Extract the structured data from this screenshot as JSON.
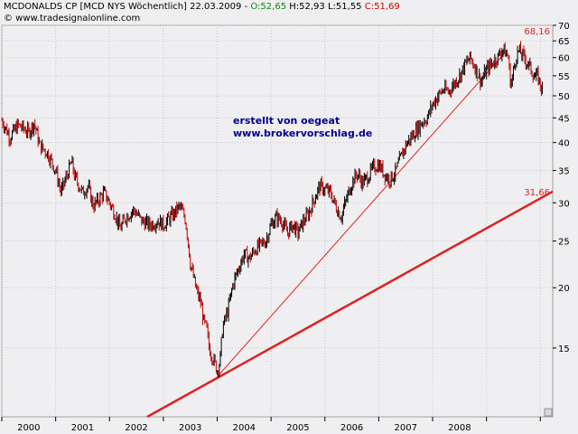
{
  "header": {
    "title": "MCDONALDS CP [MCD NYS  Wöchentlich] 22.03.2009 - ",
    "open": "O:52,65",
    "high": "H:52,93",
    "low": "L:51,55",
    "close": "C:51,69",
    "site": "© www.tradesignalonline.com"
  },
  "watermark": {
    "line1": "erstellt von oegeat",
    "line2": "www.brokervorschlag.de"
  },
  "colors": {
    "up": "#000000",
    "down": "#c00000",
    "trend": "#e02020",
    "background": "#efeff1"
  },
  "chart_data": {
    "type": "line",
    "scale": "log",
    "ylim": [
      10.8,
      70
    ],
    "xlim": [
      1999.0,
      2009.23
    ],
    "yticks": [
      15,
      20,
      25,
      30,
      35,
      40,
      45,
      50,
      55,
      60,
      65,
      70
    ],
    "xticks": [
      "2000",
      "2001",
      "2002",
      "2003",
      "2004",
      "2005",
      "2006",
      "2007",
      "2008"
    ],
    "xtick_values": [
      1999.5,
      2000.5,
      2001.5,
      2002.5,
      2003.5,
      2004.5,
      2005.5,
      2006.5,
      2007.5
    ],
    "series": [
      {
        "values": [
          [
            1999.0,
            44.5
          ],
          [
            1999.15,
            41.0
          ],
          [
            1999.3,
            43.5
          ],
          [
            1999.5,
            42.0
          ],
          [
            1999.6,
            44.0
          ],
          [
            1999.7,
            39.5
          ],
          [
            1999.85,
            38.0
          ],
          [
            2000.0,
            35.0
          ],
          [
            2000.1,
            31.5
          ],
          [
            2000.2,
            34.0
          ],
          [
            2000.3,
            36.5
          ],
          [
            2000.35,
            34.0
          ],
          [
            2000.5,
            31.5
          ],
          [
            2000.6,
            32.5
          ],
          [
            2000.7,
            29.5
          ],
          [
            2000.8,
            30.5
          ],
          [
            2000.9,
            31.5
          ],
          [
            2001.0,
            30.0
          ],
          [
            2001.1,
            28.5
          ],
          [
            2001.2,
            26.5
          ],
          [
            2001.3,
            28.0
          ],
          [
            2001.45,
            29.0
          ],
          [
            2001.6,
            27.5
          ],
          [
            2001.75,
            27.0
          ],
          [
            2001.9,
            27.5
          ],
          [
            2002.0,
            27.0
          ],
          [
            2002.2,
            28.5
          ],
          [
            2002.3,
            29.5
          ],
          [
            2002.4,
            28.0
          ],
          [
            2002.45,
            25.5
          ],
          [
            2002.5,
            22.5
          ],
          [
            2002.6,
            20.0
          ],
          [
            2002.7,
            18.5
          ],
          [
            2002.75,
            17.0
          ],
          [
            2002.8,
            16.5
          ],
          [
            2002.85,
            15.0
          ],
          [
            2002.9,
            14.5
          ],
          [
            2003.0,
            13.5
          ],
          [
            2003.05,
            14.0
          ],
          [
            2003.1,
            16.5
          ],
          [
            2003.2,
            18.0
          ],
          [
            2003.3,
            20.5
          ],
          [
            2003.4,
            22.0
          ],
          [
            2003.5,
            23.5
          ],
          [
            2003.6,
            23.0
          ],
          [
            2003.7,
            24.0
          ],
          [
            2003.8,
            24.5
          ],
          [
            2003.9,
            25.0
          ],
          [
            2004.0,
            27.0
          ],
          [
            2004.1,
            28.0
          ],
          [
            2004.2,
            27.5
          ],
          [
            2004.3,
            26.0
          ],
          [
            2004.4,
            27.0
          ],
          [
            2004.5,
            26.0
          ],
          [
            2004.6,
            27.5
          ],
          [
            2004.7,
            28.5
          ],
          [
            2004.8,
            30.5
          ],
          [
            2004.9,
            32.5
          ],
          [
            2005.0,
            32.0
          ],
          [
            2005.1,
            31.5
          ],
          [
            2005.2,
            29.5
          ],
          [
            2005.3,
            28.0
          ],
          [
            2005.4,
            30.5
          ],
          [
            2005.5,
            33.0
          ],
          [
            2005.6,
            34.5
          ],
          [
            2005.7,
            33.0
          ],
          [
            2005.8,
            34.0
          ],
          [
            2005.9,
            35.5
          ],
          [
            2006.0,
            36.0
          ],
          [
            2006.1,
            34.5
          ],
          [
            2006.2,
            33.5
          ],
          [
            2006.3,
            34.5
          ],
          [
            2006.4,
            37.0
          ],
          [
            2006.5,
            39.5
          ],
          [
            2006.6,
            41.0
          ],
          [
            2006.7,
            42.5
          ],
          [
            2006.8,
            44.0
          ],
          [
            2006.9,
            45.0
          ],
          [
            2007.0,
            48.0
          ],
          [
            2007.1,
            50.0
          ],
          [
            2007.2,
            51.5
          ],
          [
            2007.3,
            51.0
          ],
          [
            2007.4,
            53.0
          ],
          [
            2007.5,
            55.0
          ],
          [
            2007.6,
            58.0
          ],
          [
            2007.7,
            60.0
          ],
          [
            2007.8,
            57.0
          ],
          [
            2007.9,
            53.5
          ],
          [
            2008.0,
            56.5
          ],
          [
            2008.1,
            58.5
          ],
          [
            2008.2,
            60.0
          ],
          [
            2008.3,
            62.5
          ],
          [
            2008.4,
            60.5
          ],
          [
            2008.45,
            52.5
          ],
          [
            2008.5,
            56.0
          ],
          [
            2008.55,
            60.5
          ],
          [
            2008.6,
            62.0
          ],
          [
            2008.7,
            60.0
          ],
          [
            2008.8,
            57.5
          ],
          [
            2008.9,
            54.5
          ],
          [
            2008.95,
            55.0
          ],
          [
            2009.0,
            52.5
          ],
          [
            2009.05,
            51.69
          ]
        ]
      }
    ],
    "trendlines": [
      {
        "points": [
          [
            2002.98,
            13.0
          ],
          [
            2008.32,
            61.0
          ]
        ]
      },
      {
        "points": [
          [
            2001.7,
            10.8
          ],
          [
            2009.23,
            31.66
          ]
        ]
      }
    ],
    "level_labels": [
      "68,16",
      "31,66"
    ],
    "grid": true,
    "legend": "none"
  }
}
